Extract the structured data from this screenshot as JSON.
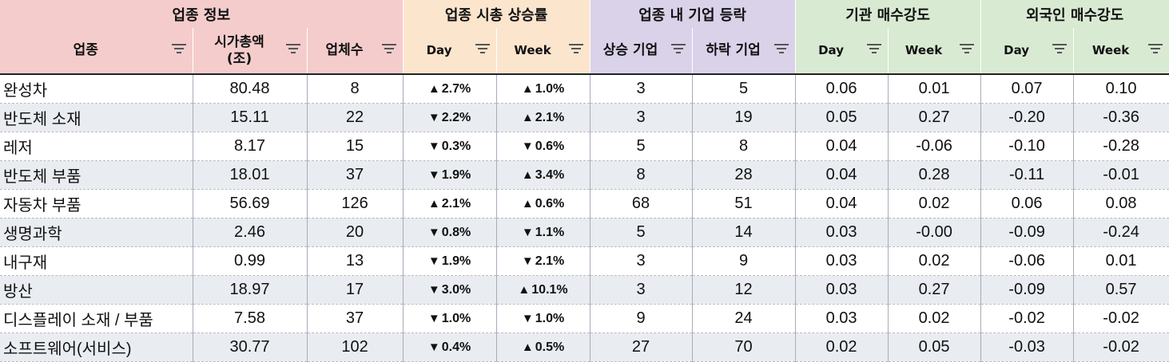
{
  "group_headers": {
    "sector_info": "업종 정보",
    "market_cap_change": "업종 시총 상승률",
    "rise_fall": "업종 내 기업 등락",
    "institution": "기관 매수강도",
    "foreign": "외국인 매수강도"
  },
  "columns": {
    "sector": "업종",
    "market_cap_line1": "시가총액",
    "market_cap_line2": "(조)",
    "count": "업체수",
    "cap_day": "Day",
    "cap_week": "Week",
    "rising": "상승 기업",
    "falling": "하락 기업",
    "inst_day": "Day",
    "inst_week": "Week",
    "foreign_day": "Day",
    "foreign_week": "Week"
  },
  "rows": [
    {
      "sector": "완성차",
      "cap": "80.48",
      "count": "8",
      "day_dir": "up",
      "day": "2.7%",
      "week_dir": "up",
      "week": "1.0%",
      "rising": "3",
      "falling": "5",
      "inst_day": "0.06",
      "inst_week": "0.01",
      "for_day": "0.07",
      "for_week": "0.10"
    },
    {
      "sector": "반도체 소재",
      "cap": "15.11",
      "count": "22",
      "day_dir": "down",
      "day": "2.2%",
      "week_dir": "up",
      "week": "2.1%",
      "rising": "3",
      "falling": "19",
      "inst_day": "0.05",
      "inst_week": "0.27",
      "for_day": "-0.20",
      "for_week": "-0.36"
    },
    {
      "sector": "레저",
      "cap": "8.17",
      "count": "15",
      "day_dir": "down",
      "day": "0.3%",
      "week_dir": "down",
      "week": "0.6%",
      "rising": "5",
      "falling": "8",
      "inst_day": "0.04",
      "inst_week": "-0.06",
      "for_day": "-0.10",
      "for_week": "-0.28"
    },
    {
      "sector": "반도체 부품",
      "cap": "18.01",
      "count": "37",
      "day_dir": "down",
      "day": "1.9%",
      "week_dir": "up",
      "week": "3.4%",
      "rising": "8",
      "falling": "28",
      "inst_day": "0.04",
      "inst_week": "0.28",
      "for_day": "-0.11",
      "for_week": "-0.01"
    },
    {
      "sector": "자동차 부품",
      "cap": "56.69",
      "count": "126",
      "day_dir": "up",
      "day": "2.1%",
      "week_dir": "up",
      "week": "0.6%",
      "rising": "68",
      "falling": "51",
      "inst_day": "0.04",
      "inst_week": "0.02",
      "for_day": "0.06",
      "for_week": "0.08"
    },
    {
      "sector": "생명과학",
      "cap": "2.46",
      "count": "20",
      "day_dir": "down",
      "day": "0.8%",
      "week_dir": "down",
      "week": "1.1%",
      "rising": "5",
      "falling": "14",
      "inst_day": "0.03",
      "inst_week": "-0.00",
      "for_day": "-0.09",
      "for_week": "-0.24"
    },
    {
      "sector": "내구재",
      "cap": "0.99",
      "count": "13",
      "day_dir": "down",
      "day": "1.9%",
      "week_dir": "down",
      "week": "2.1%",
      "rising": "3",
      "falling": "9",
      "inst_day": "0.03",
      "inst_week": "0.02",
      "for_day": "-0.06",
      "for_week": "0.01"
    },
    {
      "sector": "방산",
      "cap": "18.97",
      "count": "17",
      "day_dir": "down",
      "day": "3.0%",
      "week_dir": "up",
      "week": "10.1%",
      "rising": "3",
      "falling": "12",
      "inst_day": "0.03",
      "inst_week": "0.27",
      "for_day": "-0.09",
      "for_week": "0.57"
    },
    {
      "sector": "디스플레이 소재 / 부품",
      "cap": "7.58",
      "count": "37",
      "day_dir": "down",
      "day": "1.0%",
      "week_dir": "down",
      "week": "1.0%",
      "rising": "9",
      "falling": "24",
      "inst_day": "0.03",
      "inst_week": "0.02",
      "for_day": "-0.02",
      "for_week": "-0.02"
    },
    {
      "sector": "소프트웨어(서비스)",
      "cap": "30.77",
      "count": "102",
      "day_dir": "down",
      "day": "0.4%",
      "week_dir": "up",
      "week": "0.5%",
      "rising": "27",
      "falling": "70",
      "inst_day": "0.02",
      "inst_week": "0.05",
      "for_day": "-0.03",
      "for_week": "-0.02"
    }
  ],
  "glyphs": {
    "up": "▲",
    "down": "▼"
  },
  "colors": {
    "up": "#e31a1c",
    "down": "#1f1fd6",
    "sector_header": "#f4cccc",
    "cap_header": "#fce5cd",
    "rise_fall_header": "#d9d2e9",
    "flow_header": "#d9ead3",
    "alt_row": "#e9ecf1"
  }
}
